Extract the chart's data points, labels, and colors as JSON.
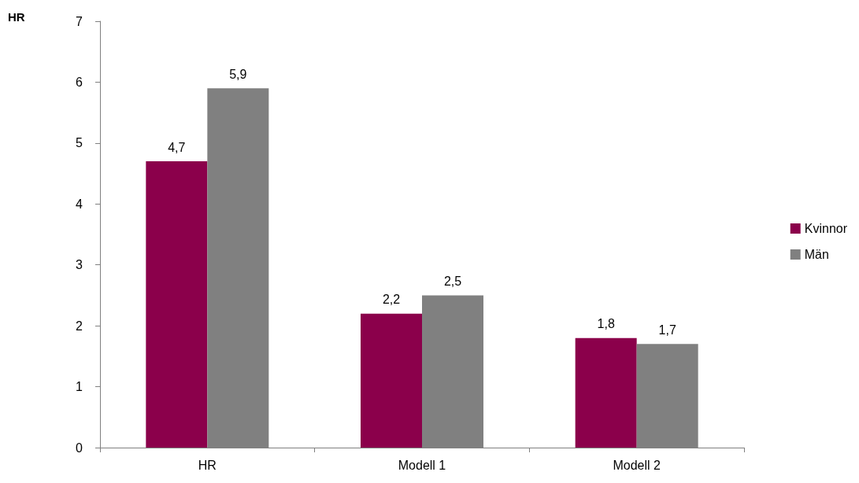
{
  "chart_data": {
    "type": "bar",
    "ylabel": "HR",
    "categories": [
      "HR",
      "Modell 1",
      "Modell 2"
    ],
    "series": [
      {
        "name": "Kvinnor",
        "color": "#8b004b",
        "values": [
          4.7,
          2.2,
          1.8
        ],
        "value_labels": [
          "4,7",
          "2,2",
          "1,8"
        ]
      },
      {
        "name": "Män",
        "color": "#808080",
        "values": [
          5.9,
          2.5,
          1.7
        ],
        "value_labels": [
          "5,9",
          "2,5",
          "1,7"
        ]
      }
    ],
    "ylim": [
      0,
      7
    ],
    "yticks": [
      0,
      1,
      2,
      3,
      4,
      5,
      6,
      7
    ],
    "grid": false,
    "legend": "right"
  }
}
